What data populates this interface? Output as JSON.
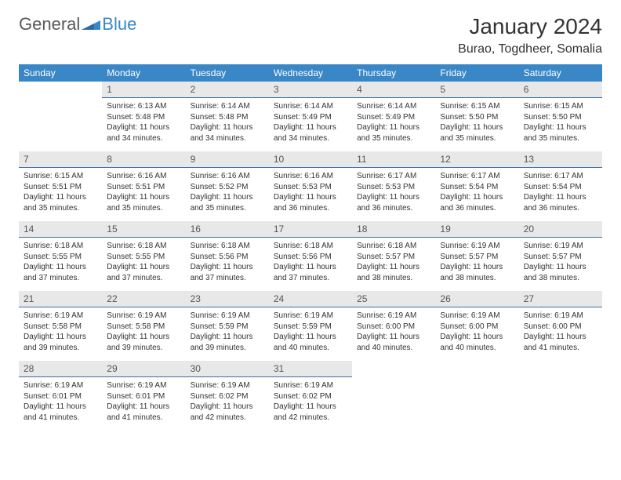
{
  "brand": {
    "part1": "General",
    "part2": "Blue",
    "accent": "#3a87c7",
    "text_color": "#595959"
  },
  "header": {
    "title": "January 2024",
    "location": "Burao, Togdheer, Somalia"
  },
  "calendar": {
    "days_of_week": [
      "Sunday",
      "Monday",
      "Tuesday",
      "Wednesday",
      "Thursday",
      "Friday",
      "Saturday"
    ],
    "header_bg": "#3a87c7",
    "header_fg": "#ffffff",
    "daynum_bg": "#e8e8e8",
    "daynum_divider": "#3a6ea5",
    "body_fontsize": 10,
    "weeks": [
      {
        "nums": [
          "",
          "1",
          "2",
          "3",
          "4",
          "5",
          "6"
        ],
        "cells": [
          null,
          {
            "sunrise": "Sunrise: 6:13 AM",
            "sunset": "Sunset: 5:48 PM",
            "day1": "Daylight: 11 hours",
            "day2": "and 34 minutes."
          },
          {
            "sunrise": "Sunrise: 6:14 AM",
            "sunset": "Sunset: 5:48 PM",
            "day1": "Daylight: 11 hours",
            "day2": "and 34 minutes."
          },
          {
            "sunrise": "Sunrise: 6:14 AM",
            "sunset": "Sunset: 5:49 PM",
            "day1": "Daylight: 11 hours",
            "day2": "and 34 minutes."
          },
          {
            "sunrise": "Sunrise: 6:14 AM",
            "sunset": "Sunset: 5:49 PM",
            "day1": "Daylight: 11 hours",
            "day2": "and 35 minutes."
          },
          {
            "sunrise": "Sunrise: 6:15 AM",
            "sunset": "Sunset: 5:50 PM",
            "day1": "Daylight: 11 hours",
            "day2": "and 35 minutes."
          },
          {
            "sunrise": "Sunrise: 6:15 AM",
            "sunset": "Sunset: 5:50 PM",
            "day1": "Daylight: 11 hours",
            "day2": "and 35 minutes."
          }
        ]
      },
      {
        "nums": [
          "7",
          "8",
          "9",
          "10",
          "11",
          "12",
          "13"
        ],
        "cells": [
          {
            "sunrise": "Sunrise: 6:15 AM",
            "sunset": "Sunset: 5:51 PM",
            "day1": "Daylight: 11 hours",
            "day2": "and 35 minutes."
          },
          {
            "sunrise": "Sunrise: 6:16 AM",
            "sunset": "Sunset: 5:51 PM",
            "day1": "Daylight: 11 hours",
            "day2": "and 35 minutes."
          },
          {
            "sunrise": "Sunrise: 6:16 AM",
            "sunset": "Sunset: 5:52 PM",
            "day1": "Daylight: 11 hours",
            "day2": "and 35 minutes."
          },
          {
            "sunrise": "Sunrise: 6:16 AM",
            "sunset": "Sunset: 5:53 PM",
            "day1": "Daylight: 11 hours",
            "day2": "and 36 minutes."
          },
          {
            "sunrise": "Sunrise: 6:17 AM",
            "sunset": "Sunset: 5:53 PM",
            "day1": "Daylight: 11 hours",
            "day2": "and 36 minutes."
          },
          {
            "sunrise": "Sunrise: 6:17 AM",
            "sunset": "Sunset: 5:54 PM",
            "day1": "Daylight: 11 hours",
            "day2": "and 36 minutes."
          },
          {
            "sunrise": "Sunrise: 6:17 AM",
            "sunset": "Sunset: 5:54 PM",
            "day1": "Daylight: 11 hours",
            "day2": "and 36 minutes."
          }
        ]
      },
      {
        "nums": [
          "14",
          "15",
          "16",
          "17",
          "18",
          "19",
          "20"
        ],
        "cells": [
          {
            "sunrise": "Sunrise: 6:18 AM",
            "sunset": "Sunset: 5:55 PM",
            "day1": "Daylight: 11 hours",
            "day2": "and 37 minutes."
          },
          {
            "sunrise": "Sunrise: 6:18 AM",
            "sunset": "Sunset: 5:55 PM",
            "day1": "Daylight: 11 hours",
            "day2": "and 37 minutes."
          },
          {
            "sunrise": "Sunrise: 6:18 AM",
            "sunset": "Sunset: 5:56 PM",
            "day1": "Daylight: 11 hours",
            "day2": "and 37 minutes."
          },
          {
            "sunrise": "Sunrise: 6:18 AM",
            "sunset": "Sunset: 5:56 PM",
            "day1": "Daylight: 11 hours",
            "day2": "and 37 minutes."
          },
          {
            "sunrise": "Sunrise: 6:18 AM",
            "sunset": "Sunset: 5:57 PM",
            "day1": "Daylight: 11 hours",
            "day2": "and 38 minutes."
          },
          {
            "sunrise": "Sunrise: 6:19 AM",
            "sunset": "Sunset: 5:57 PM",
            "day1": "Daylight: 11 hours",
            "day2": "and 38 minutes."
          },
          {
            "sunrise": "Sunrise: 6:19 AM",
            "sunset": "Sunset: 5:57 PM",
            "day1": "Daylight: 11 hours",
            "day2": "and 38 minutes."
          }
        ]
      },
      {
        "nums": [
          "21",
          "22",
          "23",
          "24",
          "25",
          "26",
          "27"
        ],
        "cells": [
          {
            "sunrise": "Sunrise: 6:19 AM",
            "sunset": "Sunset: 5:58 PM",
            "day1": "Daylight: 11 hours",
            "day2": "and 39 minutes."
          },
          {
            "sunrise": "Sunrise: 6:19 AM",
            "sunset": "Sunset: 5:58 PM",
            "day1": "Daylight: 11 hours",
            "day2": "and 39 minutes."
          },
          {
            "sunrise": "Sunrise: 6:19 AM",
            "sunset": "Sunset: 5:59 PM",
            "day1": "Daylight: 11 hours",
            "day2": "and 39 minutes."
          },
          {
            "sunrise": "Sunrise: 6:19 AM",
            "sunset": "Sunset: 5:59 PM",
            "day1": "Daylight: 11 hours",
            "day2": "and 40 minutes."
          },
          {
            "sunrise": "Sunrise: 6:19 AM",
            "sunset": "Sunset: 6:00 PM",
            "day1": "Daylight: 11 hours",
            "day2": "and 40 minutes."
          },
          {
            "sunrise": "Sunrise: 6:19 AM",
            "sunset": "Sunset: 6:00 PM",
            "day1": "Daylight: 11 hours",
            "day2": "and 40 minutes."
          },
          {
            "sunrise": "Sunrise: 6:19 AM",
            "sunset": "Sunset: 6:00 PM",
            "day1": "Daylight: 11 hours",
            "day2": "and 41 minutes."
          }
        ]
      },
      {
        "nums": [
          "28",
          "29",
          "30",
          "31",
          "",
          "",
          ""
        ],
        "cells": [
          {
            "sunrise": "Sunrise: 6:19 AM",
            "sunset": "Sunset: 6:01 PM",
            "day1": "Daylight: 11 hours",
            "day2": "and 41 minutes."
          },
          {
            "sunrise": "Sunrise: 6:19 AM",
            "sunset": "Sunset: 6:01 PM",
            "day1": "Daylight: 11 hours",
            "day2": "and 41 minutes."
          },
          {
            "sunrise": "Sunrise: 6:19 AM",
            "sunset": "Sunset: 6:02 PM",
            "day1": "Daylight: 11 hours",
            "day2": "and 42 minutes."
          },
          {
            "sunrise": "Sunrise: 6:19 AM",
            "sunset": "Sunset: 6:02 PM",
            "day1": "Daylight: 11 hours",
            "day2": "and 42 minutes."
          },
          null,
          null,
          null
        ]
      }
    ]
  }
}
